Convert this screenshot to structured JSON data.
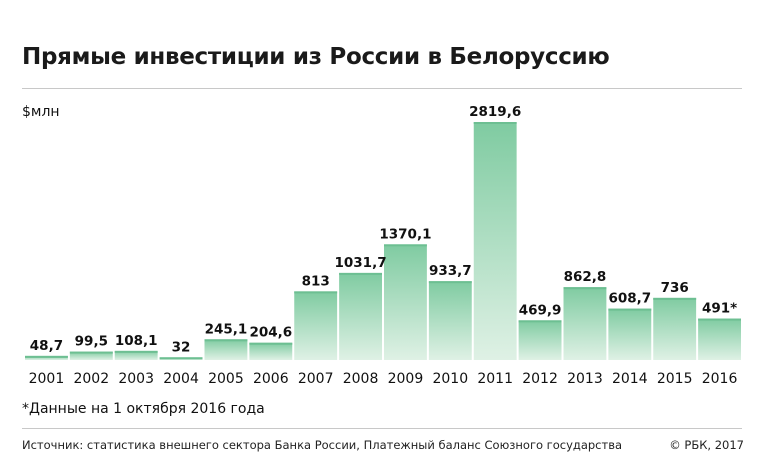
{
  "title": "Прямые инвестиции из России в Белоруссию",
  "unit_label": "$млн",
  "footnote": "*Данные на 1 октября 2016 года",
  "source": "Источник: статистика внешнего сектора Банка России, Платежный баланс Союзного государства",
  "copyright": "© РБК, 2017",
  "colors": {
    "bar_top": "#7fcba1",
    "bar_bottom": "#dff1e5",
    "bar_edge": "#6dbf92"
  },
  "chart_data": {
    "type": "bar",
    "categories": [
      "2001",
      "2002",
      "2003",
      "2004",
      "2005",
      "2006",
      "2007",
      "2008",
      "2009",
      "2010",
      "2011",
      "2012",
      "2013",
      "2014",
      "2015",
      "2016"
    ],
    "values": [
      48.7,
      99.5,
      108.1,
      32,
      245.1,
      204.6,
      813,
      1031.7,
      1370.1,
      933.7,
      2819.6,
      469.9,
      862.8,
      608.7,
      736,
      491
    ],
    "data_labels": [
      "48,7",
      "99,5",
      "108,1",
      "32",
      "245,1",
      "204,6",
      "813",
      "1031,7",
      "1370,1",
      "933,7",
      "2819,6",
      "469,9",
      "862,8",
      "608,7",
      "736",
      "491*"
    ],
    "ylabel": "$млн",
    "ylim": [
      0,
      2900
    ],
    "grid": false,
    "legend": "none"
  }
}
